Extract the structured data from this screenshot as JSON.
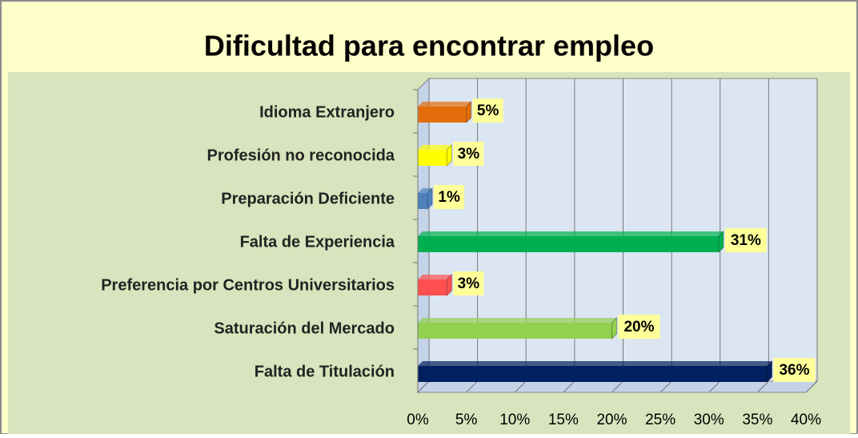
{
  "chart_data": {
    "type": "bar",
    "orientation": "horizontal",
    "title": "Dificultad para encontrar empleo",
    "categories": [
      "Idioma Extranjero",
      "Profesión no reconocida",
      "Preparación Deficiente",
      "Falta de Experiencia",
      "Preferencia por Centros Universitarios",
      "Saturación del Mercado",
      "Falta de Titulación"
    ],
    "values": [
      5,
      3,
      1,
      31,
      3,
      20,
      36
    ],
    "value_labels": [
      "5%",
      "3%",
      "1%",
      "31%",
      "3%",
      "20%",
      "36%"
    ],
    "colors": [
      "#e36c0a",
      "#ffff00",
      "#4f81bd",
      "#00b050",
      "#ff4f4f",
      "#92d050",
      "#002060"
    ],
    "xlim": [
      0,
      40
    ],
    "xticks": [
      {
        "value": 0,
        "label": "0%"
      },
      {
        "value": 5,
        "label": "5%"
      },
      {
        "value": 10,
        "label": "10%"
      },
      {
        "value": 15,
        "label": "15%"
      },
      {
        "value": 20,
        "label": "20%"
      },
      {
        "value": 25,
        "label": "25%"
      },
      {
        "value": 30,
        "label": "30%"
      },
      {
        "value": 35,
        "label": "35%"
      },
      {
        "value": 40,
        "label": "40%"
      }
    ],
    "grid": true
  }
}
